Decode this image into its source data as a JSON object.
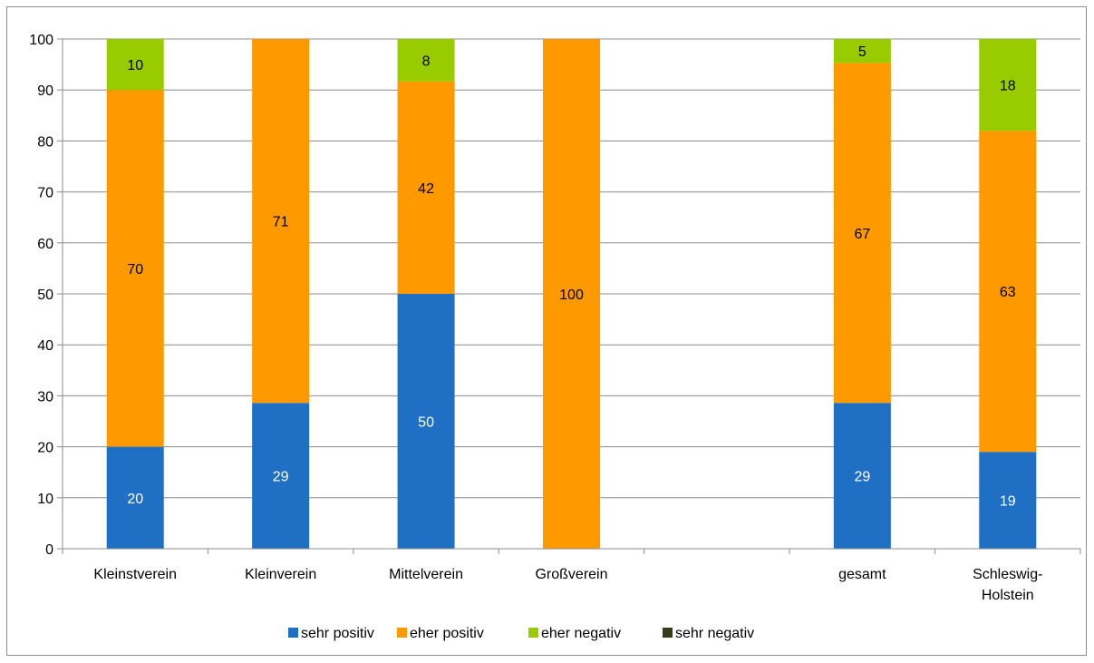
{
  "chart_data": {
    "type": "bar",
    "stacked": true,
    "title": "",
    "xlabel": "",
    "ylabel": "",
    "ylim": [
      0,
      100
    ],
    "yticks": [
      0,
      10,
      20,
      30,
      40,
      50,
      60,
      70,
      80,
      90,
      100
    ],
    "grid": true,
    "legend_position": "bottom",
    "categories": [
      [
        "Kleinstverein"
      ],
      [
        "Kleinverein"
      ],
      [
        "Mittelverein"
      ],
      [
        "Großverein"
      ],
      [
        ""
      ],
      [
        "gesamt"
      ],
      [
        "Schleswig-",
        "Holstein"
      ]
    ],
    "series": [
      {
        "name": "sehr positiv",
        "color": "#1F6FC5",
        "label_color": "#ffffff",
        "values": [
          20,
          28.6,
          50,
          0,
          null,
          28.6,
          19
        ],
        "labels": [
          "20",
          "29",
          "50",
          "",
          "",
          "29",
          "19"
        ]
      },
      {
        "name": "eher positiv",
        "color": "#FF9900",
        "label_color": "#000000",
        "values": [
          70,
          71.4,
          41.7,
          100,
          null,
          66.7,
          63
        ],
        "labels": [
          "70",
          "71",
          "42",
          "100",
          "",
          "67",
          "63"
        ]
      },
      {
        "name": "eher negativ",
        "color": "#99CC00",
        "label_color": "#000000",
        "values": [
          10,
          0,
          8.3,
          0,
          null,
          4.7,
          18
        ],
        "labels": [
          "10",
          "",
          "8",
          "",
          "",
          "5",
          "18"
        ]
      },
      {
        "name": "sehr negativ",
        "color": "#3A3A1A",
        "label_color": "#ffffff",
        "values": [
          0,
          0,
          0,
          0,
          null,
          0,
          0
        ],
        "labels": [
          "",
          "",
          "",
          "",
          "",
          "",
          ""
        ]
      }
    ]
  }
}
